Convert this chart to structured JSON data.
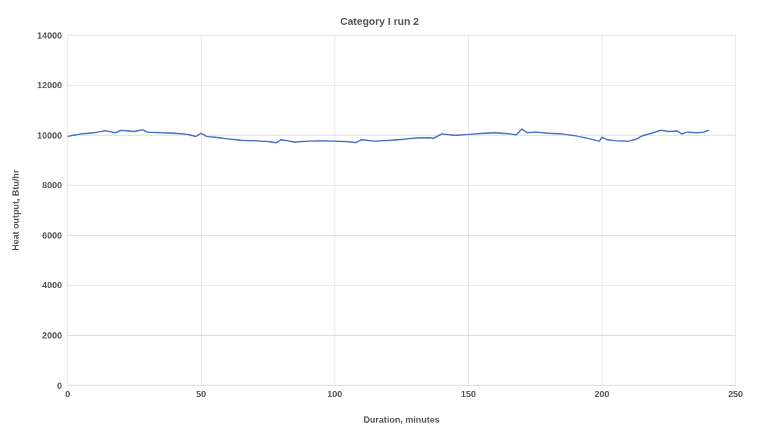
{
  "chart_data": {
    "type": "line",
    "title": "Category I run 2",
    "xlabel": "Duration, minutes",
    "ylabel": "Heat output, Btu/hr",
    "x": [
      0,
      2,
      5,
      10,
      14,
      18,
      20,
      25,
      28,
      30,
      35,
      40,
      45,
      48,
      50,
      52,
      55,
      60,
      65,
      70,
      75,
      78,
      80,
      85,
      90,
      95,
      100,
      105,
      108,
      110,
      115,
      120,
      125,
      130,
      135,
      137,
      140,
      145,
      150,
      155,
      160,
      165,
      168,
      170,
      172,
      175,
      180,
      185,
      190,
      195,
      199,
      200,
      202,
      205,
      210,
      213,
      215,
      220,
      222,
      225,
      228,
      230,
      232,
      235,
      238,
      240
    ],
    "series": [
      {
        "color": "#4472c4",
        "values": [
          9950,
          10000,
          10050,
          10100,
          10180,
          10100,
          10200,
          10150,
          10220,
          10120,
          10100,
          10080,
          10030,
          9950,
          10080,
          9950,
          9920,
          9850,
          9800,
          9780,
          9750,
          9700,
          9820,
          9730,
          9760,
          9780,
          9760,
          9740,
          9710,
          9820,
          9760,
          9790,
          9830,
          9890,
          9900,
          9880,
          10050,
          10000,
          10030,
          10070,
          10100,
          10060,
          10020,
          10250,
          10100,
          10130,
          10080,
          10050,
          9980,
          9870,
          9760,
          9920,
          9820,
          9780,
          9760,
          9850,
          9970,
          10130,
          10200,
          10150,
          10170,
          10050,
          10130,
          10100,
          10120,
          10200
        ]
      }
    ],
    "xlim": [
      0,
      250
    ],
    "xticks": [
      0,
      50,
      100,
      150,
      200,
      250
    ],
    "ylim": [
      0,
      14000
    ],
    "yticks": [
      0,
      2000,
      4000,
      6000,
      8000,
      10000,
      12000,
      14000
    ],
    "grid": true,
    "marker": "none",
    "line_style": "solid"
  }
}
